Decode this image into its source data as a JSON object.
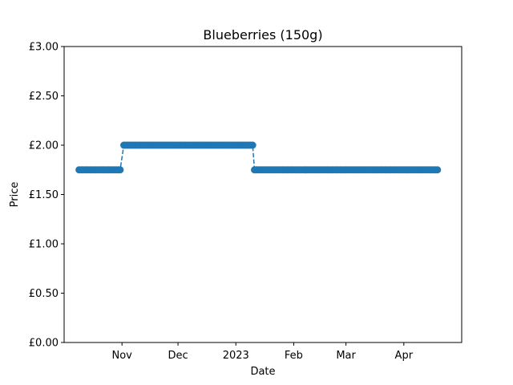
{
  "chart_data": {
    "type": "line",
    "title": "Blueberries (150g)",
    "xlabel": "Date",
    "ylabel": "Price",
    "x_axis_type": "date",
    "xlim": [
      "2022-10-01",
      "2023-05-02"
    ],
    "ylim": [
      0,
      3
    ],
    "y_ticks": [
      {
        "value": 0.0,
        "label": "£0.00"
      },
      {
        "value": 0.5,
        "label": "£0.50"
      },
      {
        "value": 1.0,
        "label": "£1.00"
      },
      {
        "value": 1.5,
        "label": "£1.50"
      },
      {
        "value": 2.0,
        "label": "£2.00"
      },
      {
        "value": 2.5,
        "label": "£2.50"
      },
      {
        "value": 3.0,
        "label": "£3.00"
      }
    ],
    "x_ticks": [
      {
        "date": "2022-11-01",
        "label": "Nov"
      },
      {
        "date": "2022-12-01",
        "label": "Dec"
      },
      {
        "date": "2023-01-01",
        "label": "2023"
      },
      {
        "date": "2023-02-01",
        "label": "Feb"
      },
      {
        "date": "2023-03-01",
        "label": "Mar"
      },
      {
        "date": "2023-04-01",
        "label": "Apr"
      }
    ],
    "grid": false,
    "legend": false,
    "line_style": "dashed",
    "marker": "circle",
    "series": [
      {
        "color": "#1f77b4",
        "segments": [
          {
            "start": "2022-10-09",
            "end": "2022-10-31",
            "value": 1.75
          },
          {
            "start": "2022-11-02",
            "end": "2023-01-10",
            "value": 2.0
          },
          {
            "start": "2023-01-11",
            "end": "2023-04-19",
            "value": 1.75
          }
        ]
      }
    ]
  }
}
